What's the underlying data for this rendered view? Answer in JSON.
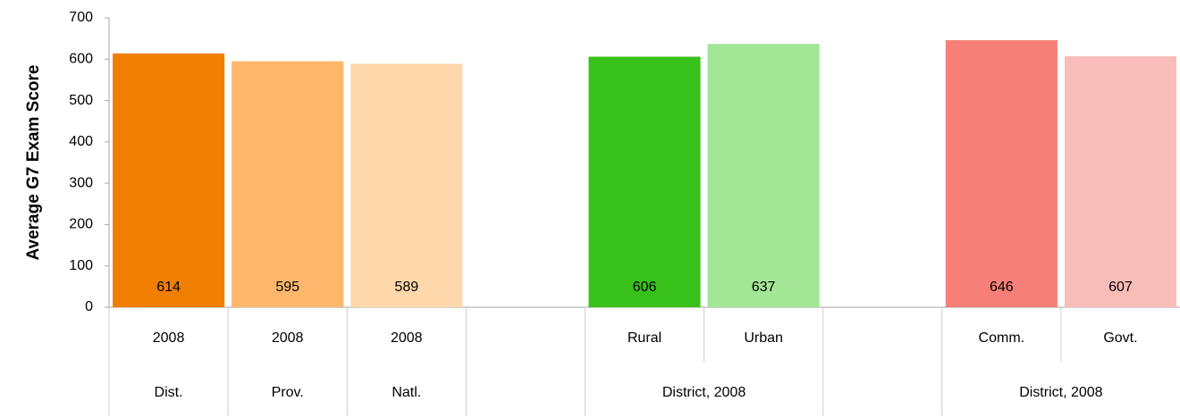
{
  "chart_data": {
    "type": "bar",
    "y_label": "Average G7 Exam Score",
    "categories": [
      "2008",
      "2008",
      "2008",
      null,
      "Rural",
      "Urban",
      null,
      "Comm.",
      "Govt."
    ],
    "categories2": [
      "Dist.",
      "Prov.",
      "Natl.",
      null,
      "District, 2008",
      "District, 2008",
      null,
      "District, 2008",
      "District, 2008"
    ],
    "values": [
      614,
      595,
      589,
      null,
      606,
      637,
      null,
      646,
      607
    ],
    "colors": [
      "#f07f00",
      "#fdb76b",
      "#fed7aa",
      null,
      "#38c11a",
      "#a3e796",
      null,
      "#f67f77",
      "#f9bdb9"
    ],
    "ylim": [
      0,
      700
    ],
    "yticks": [
      0,
      100,
      200,
      300,
      400,
      500,
      600,
      700
    ],
    "grid": false
  }
}
